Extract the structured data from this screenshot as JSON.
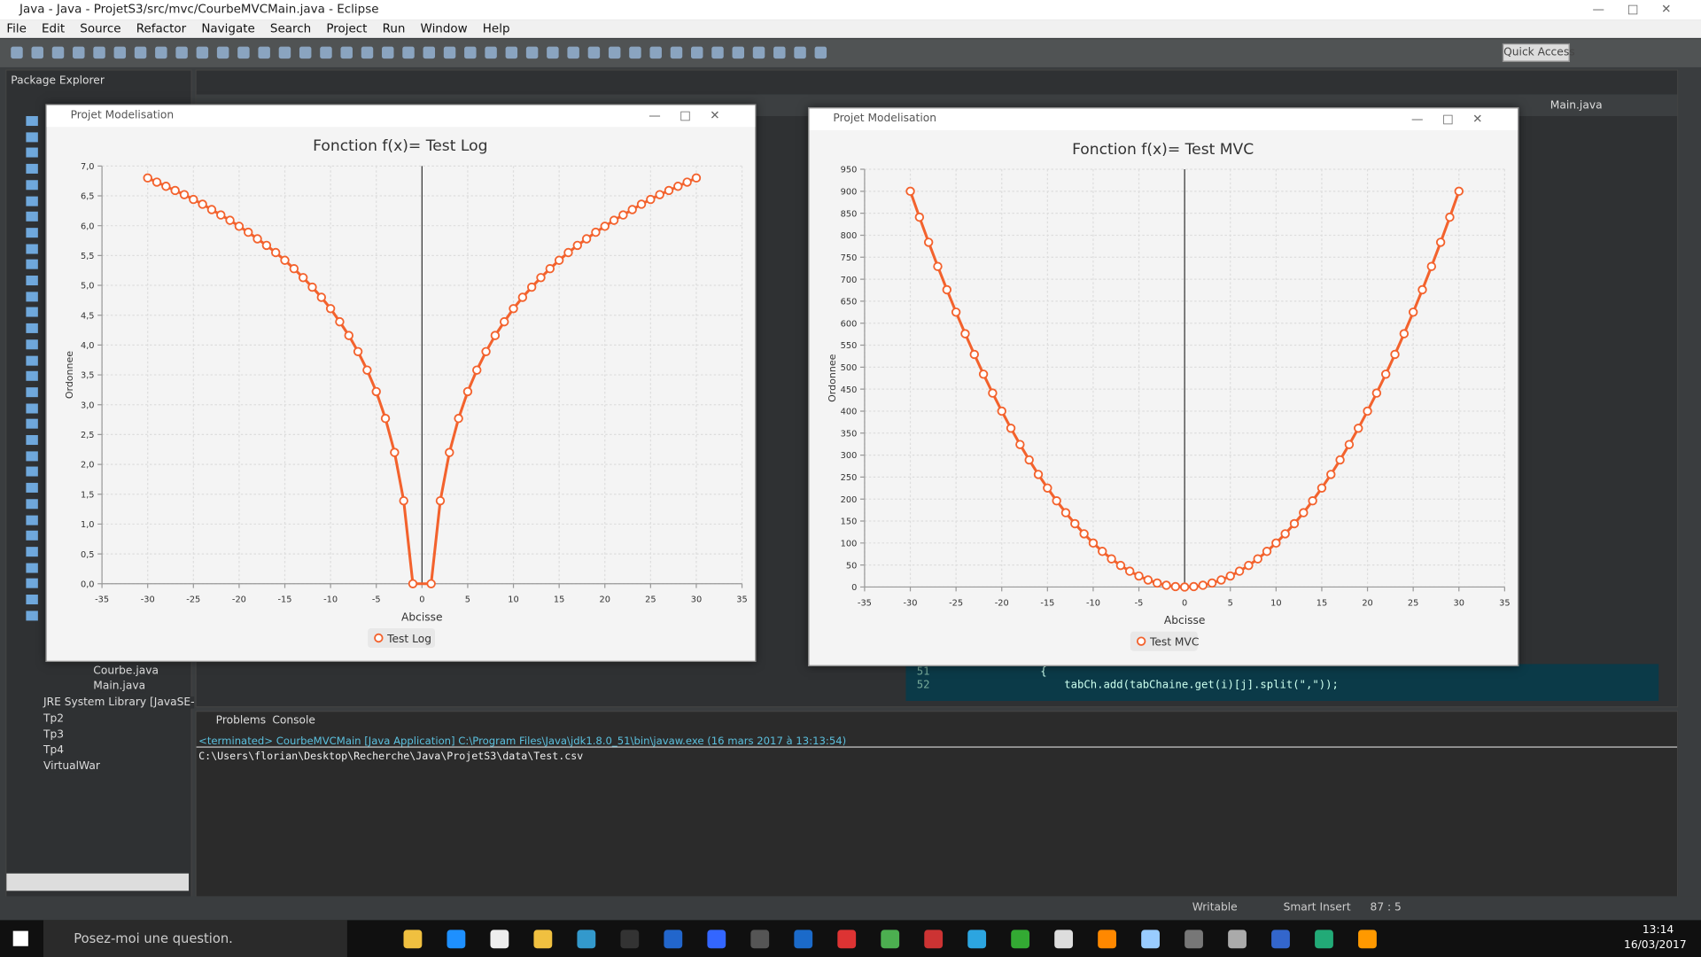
{
  "window_title": "Java - Java - ProjetS3/src/mvc/CourbeMVCMain.java - Eclipse",
  "menu": [
    "File",
    "Edit",
    "Source",
    "Refactor",
    "Navigate",
    "Search",
    "Project",
    "Run",
    "Window",
    "Help"
  ],
  "quick_access": "Quick Access",
  "explorer": {
    "tab": "Package Explorer",
    "items": [
      "Courbe.java",
      "Main.java",
      "JRE System Library [JavaSE-",
      "Tp2",
      "Tp3",
      "Tp4",
      "VirtualWar"
    ]
  },
  "editor": {
    "tab": "Main.java",
    "lines": [
      {
        "number": "51",
        "text": "{"
      },
      {
        "number": "52",
        "text": "tabCh.add(tabChaine.get(i)[j].split(\",\"));"
      }
    ]
  },
  "console": {
    "tabs": [
      "Problems",
      "Console"
    ],
    "lines": [
      "<terminated> CourbeMVCMain [Java Application] C:\\Program Files\\Java\\jdk1.8.0_51\\bin\\javaw.exe (16 mars 2017 à 13:13:54)",
      "C:\\Users\\florian\\Desktop\\Recherche\\Java\\ProjetS3\\data\\Test.csv"
    ]
  },
  "status": [
    "Writable",
    "Smart Insert",
    "87 : 5"
  ],
  "taskbar": {
    "search": "Posez-moi une question.",
    "time": "13:14",
    "date": "16/03/2017"
  },
  "chart_windows": [
    "Projet Modelisation",
    "Projet Modelisation"
  ],
  "chart_data": [
    {
      "type": "line",
      "title": "Fonction f(x)= Test Log",
      "x_label": "Abcisse",
      "y_label": "Ordonnee",
      "x": [
        -30,
        -29,
        -28,
        -27,
        -26,
        -25,
        -24,
        -23,
        -22,
        -21,
        -20,
        -19,
        -18,
        -17,
        -16,
        -15,
        -14,
        -13,
        -12,
        -11,
        -10,
        -9,
        -8,
        -7,
        -6,
        -5,
        -4,
        -3,
        -2,
        -1,
        1,
        2,
        3,
        4,
        5,
        6,
        7,
        8,
        9,
        10,
        11,
        12,
        13,
        14,
        15,
        16,
        17,
        18,
        19,
        20,
        21,
        22,
        23,
        24,
        25,
        26,
        27,
        28,
        29,
        30
      ],
      "series": [
        {
          "name": "Test Log",
          "color": "#f3622d",
          "values": [
            6.8,
            6.73,
            6.66,
            6.59,
            6.52,
            6.44,
            6.36,
            6.27,
            6.18,
            6.09,
            5.99,
            5.89,
            5.78,
            5.67,
            5.55,
            5.42,
            5.28,
            5.13,
            4.97,
            4.8,
            4.61,
            4.39,
            4.16,
            3.89,
            3.58,
            3.22,
            2.77,
            2.2,
            1.39,
            0,
            0,
            1.39,
            2.2,
            2.77,
            3.22,
            3.58,
            3.89,
            4.16,
            4.39,
            4.61,
            4.8,
            4.97,
            5.13,
            5.28,
            5.42,
            5.55,
            5.67,
            5.78,
            5.89,
            5.99,
            6.09,
            6.18,
            6.27,
            6.36,
            6.44,
            6.52,
            6.59,
            6.66,
            6.73,
            6.8
          ]
        }
      ],
      "xlim": [
        -35,
        35
      ],
      "xticks": [
        -35,
        -30,
        -25,
        -20,
        -15,
        -10,
        -5,
        0,
        5,
        10,
        15,
        20,
        25,
        30,
        35
      ],
      "ylim": [
        0,
        7
      ],
      "yticks": [
        {
          "value": 0,
          "label": "0,0"
        },
        {
          "value": 0.5,
          "label": "0,5"
        },
        {
          "value": 1,
          "label": "1,0"
        },
        {
          "value": 1.5,
          "label": "1,5"
        },
        {
          "value": 2,
          "label": "2,0"
        },
        {
          "value": 2.5,
          "label": "2,5"
        },
        {
          "value": 3,
          "label": "3,0"
        },
        {
          "value": 3.5,
          "label": "3,5"
        },
        {
          "value": 4,
          "label": "4,0"
        },
        {
          "value": 4.5,
          "label": "4,5"
        },
        {
          "value": 5,
          "label": "5,0"
        },
        {
          "value": 5.5,
          "label": "5,5"
        },
        {
          "value": 6,
          "label": "6,0"
        },
        {
          "value": 6.5,
          "label": "6,5"
        },
        {
          "value": 7,
          "label": "7,0"
        }
      ],
      "grid": true
    },
    {
      "type": "line",
      "title": "Fonction f(x)= Test MVC",
      "x_label": "Abcisse",
      "y_label": "Ordonnee",
      "x": [
        -30,
        -29,
        -28,
        -27,
        -26,
        -25,
        -24,
        -23,
        -22,
        -21,
        -20,
        -19,
        -18,
        -17,
        -16,
        -15,
        -14,
        -13,
        -12,
        -11,
        -10,
        -9,
        -8,
        -7,
        -6,
        -5,
        -4,
        -3,
        -2,
        -1,
        0,
        1,
        2,
        3,
        4,
        5,
        6,
        7,
        8,
        9,
        10,
        11,
        12,
        13,
        14,
        15,
        16,
        17,
        18,
        19,
        20,
        21,
        22,
        23,
        24,
        25,
        26,
        27,
        28,
        29,
        30
      ],
      "series": [
        {
          "name": "Test MVC",
          "color": "#f3622d",
          "values": [
            900,
            841,
            784,
            729,
            676,
            625,
            576,
            529,
            484,
            441,
            400,
            361,
            324,
            289,
            256,
            225,
            196,
            169,
            144,
            121,
            100,
            81,
            64,
            49,
            36,
            25,
            16,
            9,
            4,
            1,
            0,
            1,
            4,
            9,
            16,
            25,
            36,
            49,
            64,
            81,
            100,
            121,
            144,
            169,
            196,
            225,
            256,
            289,
            324,
            361,
            400,
            441,
            484,
            529,
            576,
            625,
            676,
            729,
            784,
            841,
            900
          ]
        }
      ],
      "xlim": [
        -35,
        35
      ],
      "xticks": [
        -35,
        -30,
        -25,
        -20,
        -15,
        -10,
        -5,
        0,
        5,
        10,
        15,
        20,
        25,
        30,
        35
      ],
      "ylim": [
        0,
        950
      ],
      "yticks": [
        0,
        50,
        100,
        150,
        200,
        250,
        300,
        350,
        400,
        450,
        500,
        550,
        600,
        650,
        700,
        750,
        800,
        850,
        900,
        950
      ],
      "grid": true
    }
  ]
}
